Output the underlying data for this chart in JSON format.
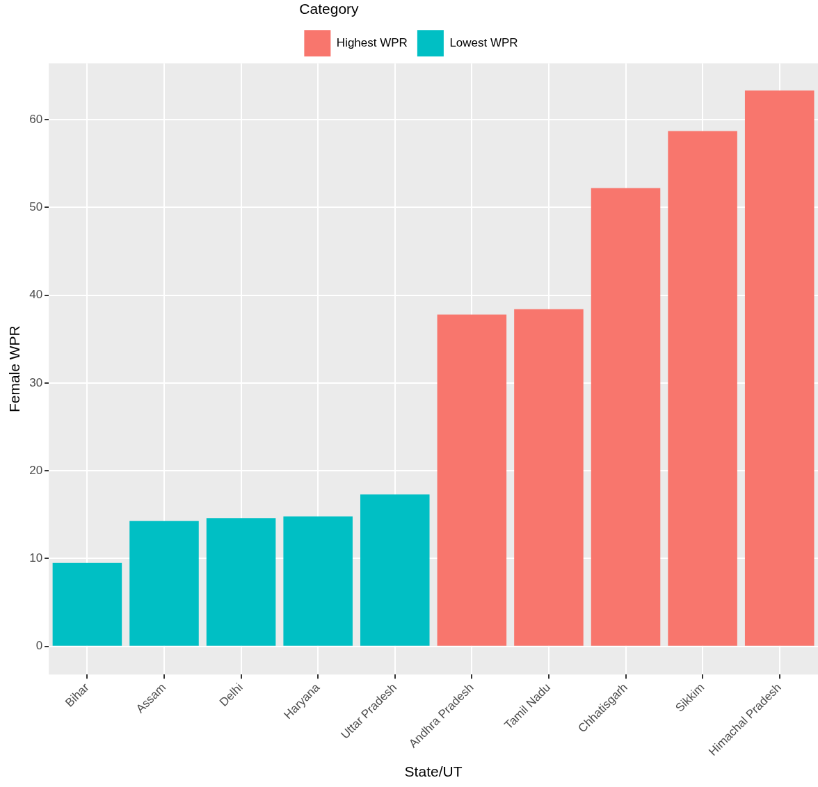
{
  "chart_data": {
    "type": "bar",
    "xlabel": "State/UT",
    "ylabel": "Female WPR",
    "legend_title": "Category",
    "categories": [
      "Bihar",
      "Assam",
      "Delhi",
      "Haryana",
      "Uttar Pradesh",
      "Andhra Pradesh",
      "Tamil Nadu",
      "Chhatisgarh",
      "Sikkim",
      "Himachal Pradesh"
    ],
    "series": [
      {
        "name": "Highest WPR",
        "color": "#f8766d",
        "values": [
          null,
          null,
          null,
          null,
          null,
          37.8,
          38.4,
          52.2,
          58.7,
          63.3
        ]
      },
      {
        "name": "Lowest WPR",
        "color": "#00bfc4",
        "values": [
          9.5,
          14.3,
          14.6,
          14.8,
          17.3,
          null,
          null,
          null,
          null,
          null
        ]
      }
    ],
    "ylim": [
      -3.2,
      66.4
    ],
    "yticks": [
      0,
      10,
      20,
      30,
      40,
      50,
      60
    ],
    "grid": true,
    "legend": "top"
  }
}
